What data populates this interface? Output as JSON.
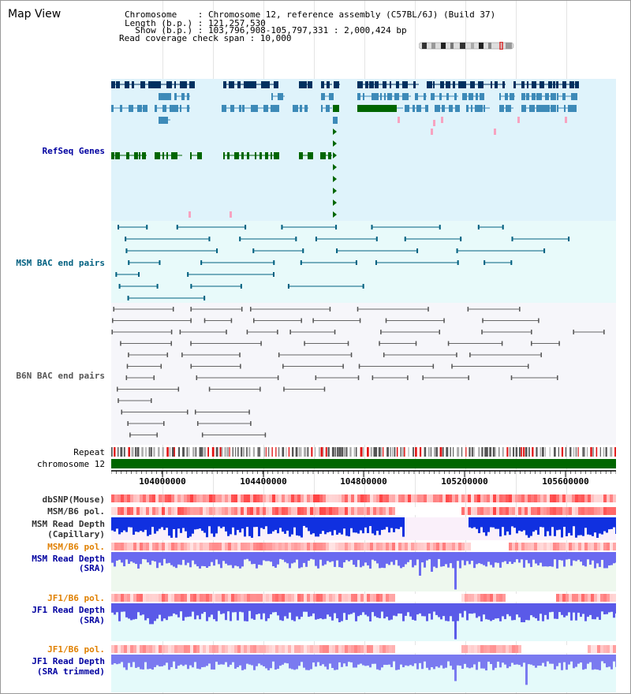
{
  "view_title": "Map View",
  "info": {
    "chromosome_line": "Chromosome    : Chromosome 12, reference assembly (C57BL/6J) (Build 37)",
    "length_line": "Length (b.p.) : 121,257,530",
    "show_line": "  Show (b.p.) : 103,796,908-105,797,331 : 2,000,424 bp",
    "coverage_line": "Read coverage check span : 10,000"
  },
  "tracks": {
    "refseq": {
      "label": "RefSeq Genes",
      "color": "#0000a0"
    },
    "msm_bac": {
      "label": "MSM BAC end pairs",
      "color": "#006080"
    },
    "b6n_bac": {
      "label": "B6N BAC end pairs",
      "color": "#555555"
    },
    "repeat": {
      "label": "Repeat"
    },
    "chromosome": {
      "label": "chromosome 12"
    },
    "dbsnp": {
      "label": "dbSNP(Mouse)"
    },
    "msm_b6_pol_1": {
      "label": "MSM/B6 pol."
    },
    "msm_read_depth_cap": {
      "label_line1": "MSM Read Depth",
      "label_line2": "(Capillary)"
    },
    "msm_b6_pol_2": {
      "label": "MSM/B6 pol."
    },
    "msm_read_depth_sra": {
      "label_line1": "MSM Read Depth",
      "label_line2": "(SRA)"
    },
    "jf1_b6_pol_1": {
      "label": "JF1/B6 pol."
    },
    "jf1_read_depth_sra": {
      "label_line1": "JF1 Read Depth",
      "label_line2": "(SRA)"
    },
    "jf1_b6_pol_2": {
      "label": "JF1/B6 pol."
    },
    "jf1_read_depth_trim": {
      "label_line1": "JF1 Read Depth",
      "label_line2": "(SRA trimmed)"
    }
  },
  "ruler": {
    "ticks": [
      "104000000",
      "104400000",
      "104800000",
      "105200000",
      "105600000"
    ]
  },
  "colors": {
    "refseq_bg": "#dff3fb",
    "msm_bg": "#e8fafa",
    "b6n_bg": "#f6f6fa",
    "chromosome": "#006600",
    "navy": "#00305f",
    "steel": "#3d8ab8",
    "green": "#006600",
    "pink": "#f7a3c0",
    "msm_label": "#006080",
    "pol_orange": "#e08000",
    "depth_blue": "#0000a0"
  }
}
